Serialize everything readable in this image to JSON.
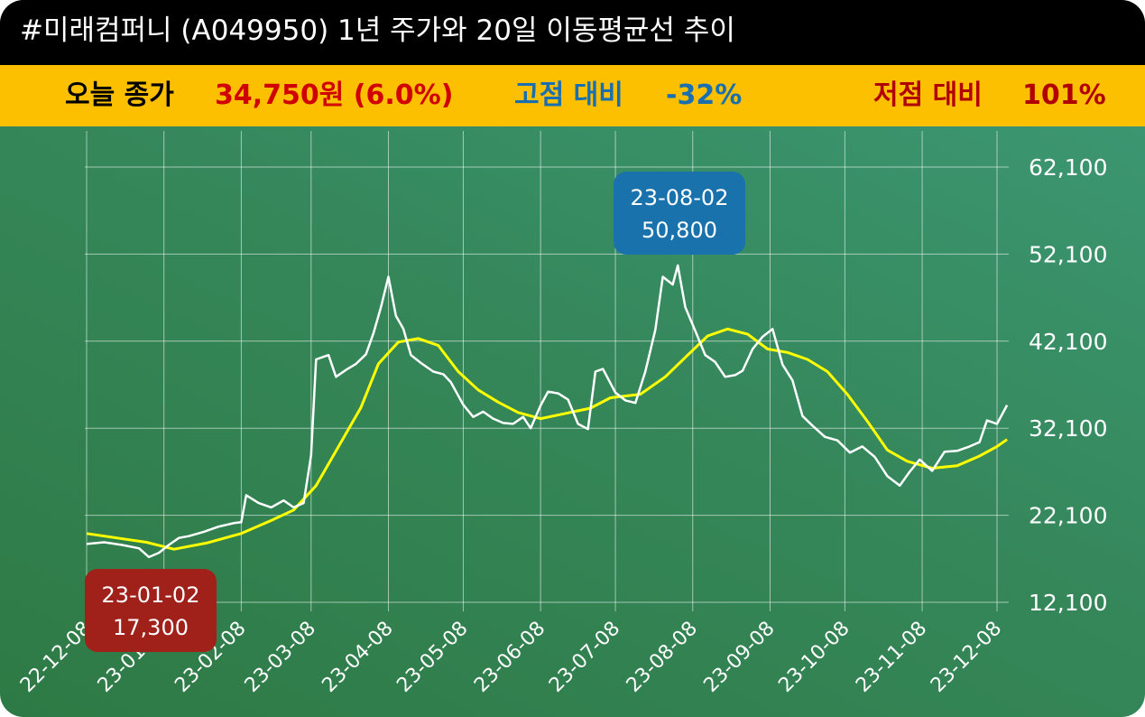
{
  "header": {
    "title": "#미래컴퍼니 (A049950) 1년 주가와 20일 이동평균선 추이"
  },
  "stats": {
    "today_label": "오늘 종가",
    "today_value": "34,750원 (6.0%)",
    "high_label": "고점 대비",
    "high_value": "-32%",
    "low_label": "저점 대비",
    "low_value": "101%"
  },
  "colors": {
    "title_bg": "#000000",
    "stats_bg": "#fcc000",
    "today_value": "#d00000",
    "high": "#1a6fb0",
    "low": "#b00000",
    "price_line": "#ffffff",
    "ma_line": "#ffff00",
    "high_box": "#1a72ad",
    "low_box": "#a0201a"
  },
  "chart_data": {
    "type": "line",
    "x_axis": "dates",
    "x_ticks": [
      "22-12-08",
      "23-01-08",
      "23-02-08",
      "23-03-08",
      "23-04-08",
      "23-05-08",
      "23-06-08",
      "23-07-08",
      "23-08-08",
      "23-09-08",
      "23-10-08",
      "23-11-08",
      "23-12-08"
    ],
    "y_ticks": [
      12100,
      22100,
      32100,
      42100,
      52100,
      62100
    ],
    "y_tick_labels": [
      "12,100",
      "22,100",
      "32,100",
      "42,100",
      "52,100",
      "62,100"
    ],
    "ylim": [
      12100,
      62100
    ],
    "xlim": [
      "2022-12-08",
      "2023-12-12"
    ],
    "grid": true,
    "series": [
      {
        "role": "price",
        "points": [
          [
            "2022-12-08",
            18800
          ],
          [
            "2022-12-15",
            19000
          ],
          [
            "2022-12-22",
            18700
          ],
          [
            "2022-12-29",
            18300
          ],
          [
            "2023-01-02",
            17300
          ],
          [
            "2023-01-06",
            17800
          ],
          [
            "2023-01-10",
            18700
          ],
          [
            "2023-01-14",
            19500
          ],
          [
            "2023-01-18",
            19700
          ],
          [
            "2023-01-24",
            20200
          ],
          [
            "2023-01-30",
            20800
          ],
          [
            "2023-02-05",
            21200
          ],
          [
            "2023-02-08",
            21300
          ],
          [
            "2023-02-10",
            24400
          ],
          [
            "2023-02-15",
            23500
          ],
          [
            "2023-02-20",
            23000
          ],
          [
            "2023-02-25",
            23800
          ],
          [
            "2023-03-01",
            23000
          ],
          [
            "2023-03-05",
            23500
          ],
          [
            "2023-03-08",
            29000
          ],
          [
            "2023-03-10",
            40000
          ],
          [
            "2023-03-15",
            40500
          ],
          [
            "2023-03-18",
            38000
          ],
          [
            "2023-03-22",
            38800
          ],
          [
            "2023-03-26",
            39500
          ],
          [
            "2023-03-30",
            40600
          ],
          [
            "2023-04-02",
            43000
          ],
          [
            "2023-04-05",
            46000
          ],
          [
            "2023-04-08",
            49500
          ],
          [
            "2023-04-11",
            45000
          ],
          [
            "2023-04-14",
            43500
          ],
          [
            "2023-04-17",
            40500
          ],
          [
            "2023-04-21",
            39600
          ],
          [
            "2023-04-26",
            38600
          ],
          [
            "2023-04-30",
            38300
          ],
          [
            "2023-05-03",
            37400
          ],
          [
            "2023-05-08",
            34800
          ],
          [
            "2023-05-12",
            33400
          ],
          [
            "2023-05-16",
            34000
          ],
          [
            "2023-05-20",
            33200
          ],
          [
            "2023-05-24",
            32700
          ],
          [
            "2023-05-28",
            32600
          ],
          [
            "2023-06-01",
            33400
          ],
          [
            "2023-06-04",
            32100
          ],
          [
            "2023-06-08",
            34700
          ],
          [
            "2023-06-11",
            36300
          ],
          [
            "2023-06-15",
            36100
          ],
          [
            "2023-06-19",
            35400
          ],
          [
            "2023-06-23",
            32600
          ],
          [
            "2023-06-27",
            32000
          ],
          [
            "2023-06-30",
            38600
          ],
          [
            "2023-07-03",
            38900
          ],
          [
            "2023-07-08",
            36200
          ],
          [
            "2023-07-12",
            35300
          ],
          [
            "2023-07-16",
            35000
          ],
          [
            "2023-07-20",
            38600
          ],
          [
            "2023-07-24",
            43400
          ],
          [
            "2023-07-27",
            49500
          ],
          [
            "2023-07-31",
            48600
          ],
          [
            "2023-08-02",
            50800
          ],
          [
            "2023-08-05",
            46000
          ],
          [
            "2023-08-09",
            43300
          ],
          [
            "2023-08-13",
            40500
          ],
          [
            "2023-08-17",
            39700
          ],
          [
            "2023-08-21",
            38000
          ],
          [
            "2023-08-25",
            38200
          ],
          [
            "2023-08-28",
            38700
          ],
          [
            "2023-09-01",
            41200
          ],
          [
            "2023-09-05",
            42600
          ],
          [
            "2023-09-09",
            43500
          ],
          [
            "2023-09-13",
            39400
          ],
          [
            "2023-09-17",
            37600
          ],
          [
            "2023-09-21",
            33500
          ],
          [
            "2023-09-25",
            32400
          ],
          [
            "2023-09-30",
            31100
          ],
          [
            "2023-10-05",
            30700
          ],
          [
            "2023-10-10",
            29300
          ],
          [
            "2023-10-15",
            30000
          ],
          [
            "2023-10-20",
            28800
          ],
          [
            "2023-10-25",
            26600
          ],
          [
            "2023-10-30",
            25500
          ],
          [
            "2023-11-03",
            27100
          ],
          [
            "2023-11-07",
            28500
          ],
          [
            "2023-11-12",
            27200
          ],
          [
            "2023-11-17",
            29400
          ],
          [
            "2023-11-22",
            29500
          ],
          [
            "2023-11-27",
            30000
          ],
          [
            "2023-12-01",
            30500
          ],
          [
            "2023-12-04",
            33000
          ],
          [
            "2023-12-08",
            32600
          ],
          [
            "2023-12-12",
            34750
          ]
        ]
      },
      {
        "role": "ma20",
        "points": [
          [
            "2022-12-08",
            20000
          ],
          [
            "2022-12-20",
            19500
          ],
          [
            "2023-01-01",
            19000
          ],
          [
            "2023-01-12",
            18200
          ],
          [
            "2023-01-25",
            18900
          ],
          [
            "2023-02-08",
            20000
          ],
          [
            "2023-02-20",
            21500
          ],
          [
            "2023-03-01",
            22700
          ],
          [
            "2023-03-10",
            25500
          ],
          [
            "2023-03-20",
            30500
          ],
          [
            "2023-03-28",
            34500
          ],
          [
            "2023-04-04",
            39500
          ],
          [
            "2023-04-12",
            42000
          ],
          [
            "2023-04-20",
            42400
          ],
          [
            "2023-04-28",
            41600
          ],
          [
            "2023-05-06",
            38600
          ],
          [
            "2023-05-14",
            36500
          ],
          [
            "2023-05-22",
            35100
          ],
          [
            "2023-05-30",
            33900
          ],
          [
            "2023-06-08",
            33200
          ],
          [
            "2023-06-18",
            33800
          ],
          [
            "2023-06-28",
            34400
          ],
          [
            "2023-07-06",
            35600
          ],
          [
            "2023-07-18",
            36000
          ],
          [
            "2023-07-28",
            38000
          ],
          [
            "2023-08-06",
            40500
          ],
          [
            "2023-08-14",
            42700
          ],
          [
            "2023-08-22",
            43500
          ],
          [
            "2023-08-30",
            42900
          ],
          [
            "2023-09-07",
            41200
          ],
          [
            "2023-09-15",
            40800
          ],
          [
            "2023-09-23",
            40000
          ],
          [
            "2023-10-01",
            38600
          ],
          [
            "2023-10-09",
            36000
          ],
          [
            "2023-10-17",
            32900
          ],
          [
            "2023-10-25",
            29600
          ],
          [
            "2023-11-02",
            28300
          ],
          [
            "2023-11-12",
            27500
          ],
          [
            "2023-11-22",
            27800
          ],
          [
            "2023-12-01",
            28900
          ],
          [
            "2023-12-08",
            30000
          ],
          [
            "2023-12-12",
            30800
          ]
        ]
      }
    ],
    "annotations": [
      {
        "kind": "high",
        "date_label": "23-08-02",
        "value_label": "50,800",
        "x": "2023-08-02",
        "y": 50800
      },
      {
        "kind": "low",
        "date_label": "23-01-02",
        "value_label": "17,300",
        "x": "2023-01-02",
        "y": 17300
      }
    ]
  }
}
